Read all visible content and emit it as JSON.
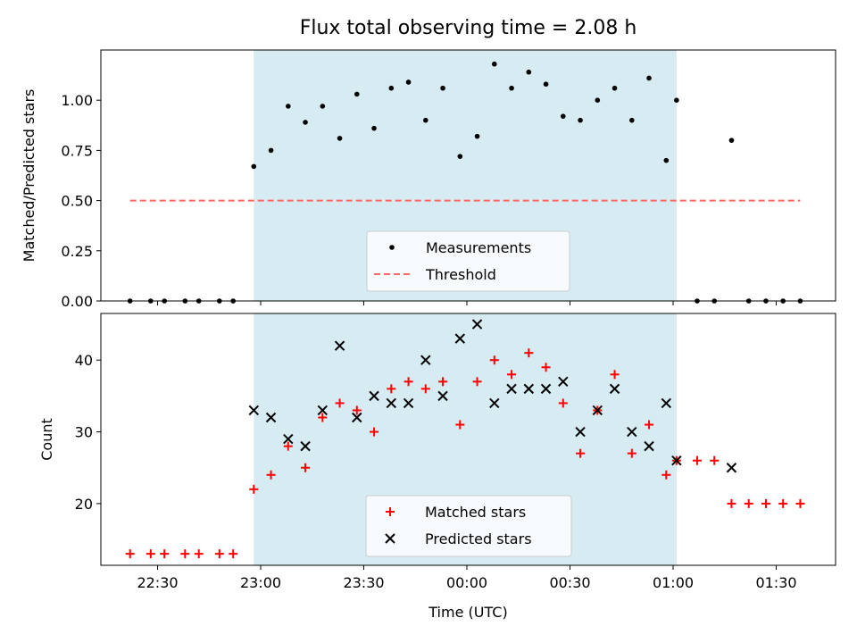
{
  "figure": {
    "title": "Flux total observing time = 2.08 h",
    "xlabel": "Time (UTC)",
    "shaded_region": {
      "start": "22:58",
      "end": "01:01",
      "color": "#add8e6"
    },
    "x_ticks": [
      "22:30",
      "23:00",
      "23:30",
      "00:00",
      "00:30",
      "01:00",
      "01:30"
    ]
  },
  "chart_data": [
    {
      "type": "scatter",
      "panel": "top",
      "ylabel": "Matched/Predicted stars",
      "ylim": [
        0,
        1.25
      ],
      "y_ticks": [
        "0.00",
        "0.25",
        "0.50",
        "0.75",
        "1.00"
      ],
      "grid": false,
      "legend_position": "lower-center",
      "series": [
        {
          "name": "Measurements",
          "marker": "dot",
          "color": "#000000",
          "x": [
            "22:22",
            "22:28",
            "22:32",
            "22:38",
            "22:42",
            "22:48",
            "22:52",
            "22:58",
            "23:03",
            "23:08",
            "23:13",
            "23:18",
            "23:23",
            "23:28",
            "23:33",
            "23:38",
            "23:43",
            "23:48",
            "23:53",
            "23:58",
            "00:03",
            "00:08",
            "00:13",
            "00:18",
            "00:23",
            "00:28",
            "00:33",
            "00:38",
            "00:43",
            "00:48",
            "00:53",
            "00:58",
            "01:01",
            "01:07",
            "01:12",
            "01:17",
            "01:22",
            "01:27",
            "01:32",
            "01:37"
          ],
          "y": [
            0,
            0,
            0,
            0,
            0,
            0,
            0,
            0.67,
            0.75,
            0.97,
            0.89,
            0.97,
            0.81,
            1.03,
            0.86,
            1.06,
            1.09,
            0.9,
            1.06,
            0.72,
            0.82,
            1.18,
            1.06,
            1.14,
            1.08,
            0.92,
            0.9,
            1.0,
            1.06,
            0.9,
            1.11,
            0.7,
            1.0,
            0,
            0,
            0.8,
            0,
            0,
            0,
            0
          ]
        },
        {
          "name": "Threshold",
          "style": "dashed",
          "color": "#ff6666",
          "x": [
            "22:22",
            "01:37"
          ],
          "y": [
            0.5,
            0.5
          ]
        }
      ]
    },
    {
      "type": "scatter",
      "panel": "bottom",
      "ylabel": "Count",
      "ylim": [
        11.4,
        46.5
      ],
      "y_ticks": [
        "20",
        "30",
        "40"
      ],
      "grid": false,
      "legend_position": "lower-center",
      "series": [
        {
          "name": "Matched stars",
          "marker": "plus",
          "color": "#ff0000",
          "x": [
            "22:22",
            "22:28",
            "22:32",
            "22:38",
            "22:42",
            "22:48",
            "22:52",
            "22:58",
            "23:03",
            "23:08",
            "23:13",
            "23:18",
            "23:23",
            "23:28",
            "23:33",
            "23:38",
            "23:43",
            "23:48",
            "23:53",
            "23:58",
            "00:03",
            "00:08",
            "00:13",
            "00:18",
            "00:23",
            "00:28",
            "00:33",
            "00:38",
            "00:43",
            "00:48",
            "00:53",
            "00:58",
            "01:01",
            "01:07",
            "01:12",
            "01:17",
            "01:22",
            "01:27",
            "01:32",
            "01:37"
          ],
          "y": [
            13,
            13,
            13,
            13,
            13,
            13,
            13,
            22,
            24,
            28,
            25,
            32,
            34,
            33,
            30,
            36,
            37,
            36,
            37,
            31,
            37,
            40,
            38,
            41,
            39,
            34,
            27,
            33,
            38,
            27,
            31,
            24,
            26,
            26,
            26,
            20,
            20,
            20,
            20,
            20
          ]
        },
        {
          "name": "Predicted stars",
          "marker": "x",
          "color": "#000000",
          "x": [
            "22:58",
            "23:03",
            "23:08",
            "23:13",
            "23:18",
            "23:23",
            "23:28",
            "23:33",
            "23:38",
            "23:43",
            "23:48",
            "23:53",
            "23:58",
            "00:03",
            "00:08",
            "00:13",
            "00:18",
            "00:23",
            "00:28",
            "00:33",
            "00:38",
            "00:43",
            "00:48",
            "00:53",
            "00:58",
            "01:01",
            "01:17"
          ],
          "y": [
            33,
            32,
            29,
            28,
            33,
            42,
            32,
            35,
            34,
            34,
            40,
            35,
            43,
            45,
            34,
            36,
            36,
            36,
            37,
            30,
            33,
            36,
            30,
            28,
            34,
            26,
            25
          ]
        }
      ]
    }
  ]
}
